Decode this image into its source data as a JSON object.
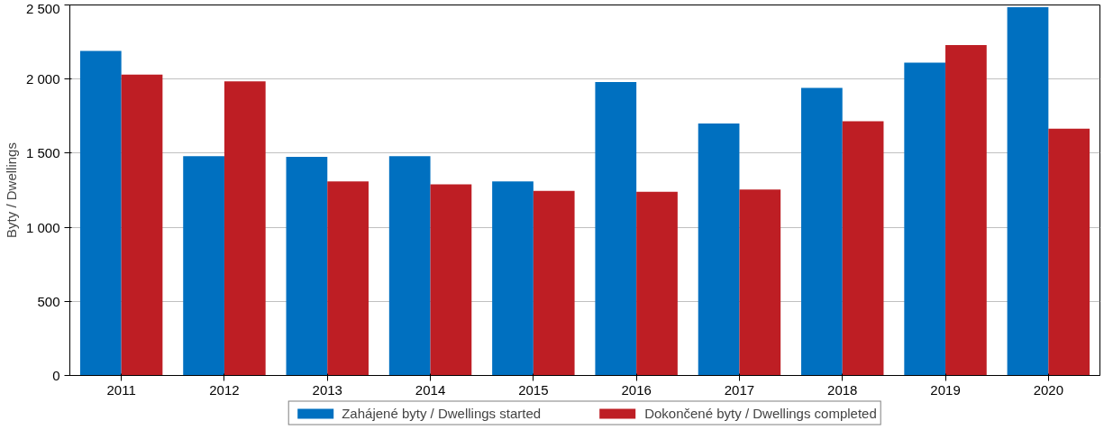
{
  "chart_data": {
    "type": "bar",
    "ylabel": "Byty / Dwellings",
    "categories": [
      "2011",
      "2012",
      "2013",
      "2014",
      "2015",
      "2016",
      "2017",
      "2018",
      "2019",
      "2020"
    ],
    "series": [
      {
        "name": "Zahájené byty / Dwellings started",
        "color": "#0070c0",
        "values": [
          2190,
          1480,
          1475,
          1480,
          1310,
          1980,
          1700,
          1940,
          2110,
          2485
        ]
      },
      {
        "name": "Dokončené byty / Dwellings completed",
        "color": "#be1e24",
        "values": [
          2030,
          1985,
          1310,
          1290,
          1245,
          1240,
          1255,
          1715,
          2230,
          1665
        ]
      }
    ],
    "ylim": [
      0,
      2500
    ],
    "yticks": [
      0,
      500,
      {
        "value": 1000,
        "label": "1 000"
      },
      {
        "value": 1500,
        "label": "1 500"
      },
      {
        "value": 2000,
        "label": "2 000"
      },
      {
        "value": 2500,
        "label": "2 500"
      }
    ],
    "grid": "y",
    "legend": "bottom"
  }
}
